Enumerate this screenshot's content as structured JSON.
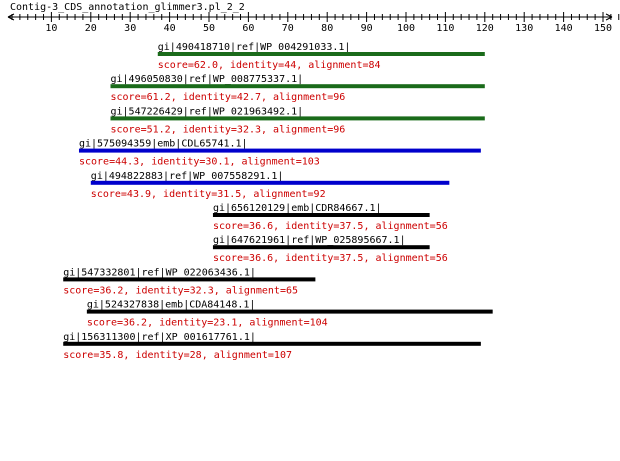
{
  "title": "Contig-3_CDS_annotation_glimmer3.pl_2_2",
  "axis": {
    "min": 0,
    "max": 155,
    "labeled_ticks": [
      10,
      20,
      30,
      40,
      50,
      60,
      70,
      80,
      90,
      100,
      110,
      120,
      130,
      140,
      150
    ],
    "tick_labels": [
      "10",
      "20",
      "30",
      "40",
      "50",
      "60",
      "70",
      "80",
      "90",
      "100",
      "110",
      "120",
      "130",
      "140",
      "150"
    ],
    "minor_step": 2
  },
  "colors": {
    "text": "#000000",
    "score_text": "#cc0000",
    "green": "#1a6b1a",
    "blue": "#0000cc",
    "black": "#000000"
  },
  "hits": [
    {
      "name": "gi|490418710|ref|WP_004291033.1|",
      "score_text": "score=62.0, identity=44, alignment=84",
      "start": 37,
      "end": 120,
      "color": "green"
    },
    {
      "name": "gi|496050830|ref|WP_008775337.1|",
      "score_text": "score=61.2, identity=42.7, alignment=96",
      "start": 25,
      "end": 120,
      "color": "green"
    },
    {
      "name": "gi|547226429|ref|WP_021963492.1|",
      "score_text": "score=51.2, identity=32.3, alignment=96",
      "start": 25,
      "end": 120,
      "color": "green"
    },
    {
      "name": "gi|575094359|emb|CDL65741.1|",
      "score_text": "score=44.3, identity=30.1, alignment=103",
      "start": 17,
      "end": 119,
      "color": "blue"
    },
    {
      "name": "gi|494822883|ref|WP_007558291.1|",
      "score_text": "score=43.9, identity=31.5, alignment=92",
      "start": 20,
      "end": 111,
      "color": "blue"
    },
    {
      "name": "gi|656120129|emb|CDR84667.1|",
      "score_text": "score=36.6, identity=37.5, alignment=56",
      "start": 51,
      "end": 106,
      "color": "black"
    },
    {
      "name": "gi|647621961|ref|WP_025895667.1|",
      "score_text": "score=36.6, identity=37.5, alignment=56",
      "start": 51,
      "end": 106,
      "color": "black"
    },
    {
      "name": "gi|547332801|ref|WP_022063436.1|",
      "score_text": "score=36.2, identity=32.3, alignment=65",
      "start": 13,
      "end": 77,
      "color": "black"
    },
    {
      "name": "gi|524327838|emb|CDA84148.1|",
      "score_text": "score=36.2, identity=23.1, alignment=104",
      "start": 19,
      "end": 122,
      "color": "black"
    },
    {
      "name": "gi|156311300|ref|XP_001617761.1|",
      "score_text": "score=35.8, identity=28, alignment=107",
      "start": 13,
      "end": 119,
      "color": "black"
    }
  ]
}
